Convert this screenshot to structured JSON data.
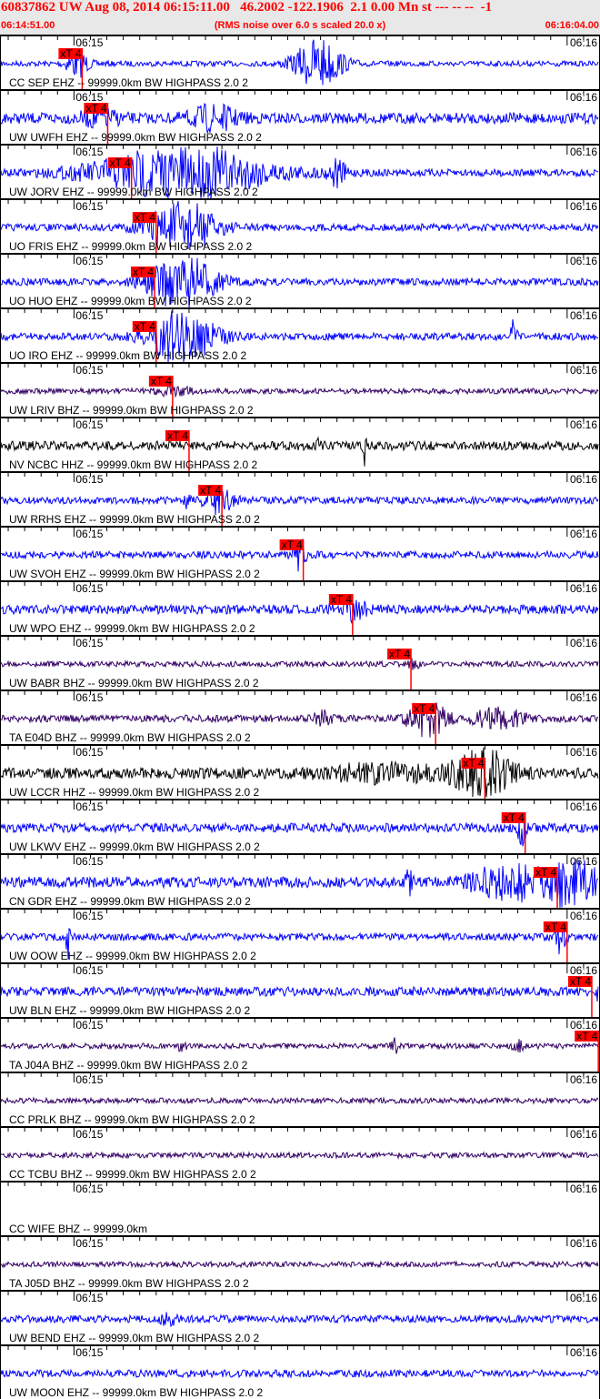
{
  "header": {
    "title": "60837862 UW Aug 08, 2014 06:15:11.00   46.2002 -122.1906  2.1 0.00 Mn st --- -- --  -1",
    "start_time": "06:14:51.00",
    "end_time": "06:16:04.00",
    "note": "(RMS noise over 6.0 s scaled 20.0 x)"
  },
  "chart_data": {
    "type": "line",
    "title": "60837862 UW Aug 08, 2014 06:15:11.00",
    "xlim": [
      "06:14:51.00",
      "06:16:04.00"
    ],
    "tick_labels": [
      "06:15",
      "06:16"
    ],
    "pick_label": "xT 4",
    "pick_color": "#ff0000",
    "colors": {
      "blue": "#0000ff",
      "purple": "#330066",
      "black": "#000000"
    },
    "traces": [
      {
        "label": "CC SEP EHZ -- 99999.0km BW  HIGHPASS  2.0  2",
        "color": "#0000ff",
        "pick": "06:15:01.0"
      },
      {
        "label": "UW UWFH EHZ -- 99999.0km BW  HIGHPASS  2.0  2",
        "color": "#0000ff",
        "pick": "06:15:04.1"
      },
      {
        "label": "UW JORV EHZ -- 99999.0km BW  HIGHPASS  2.0  2",
        "color": "#0000ff",
        "pick": "06:15:07.0"
      },
      {
        "label": "UO FRIS EHZ -- 99999.0km BW  HIGHPASS  2.0  2",
        "color": "#0000ff",
        "pick": "06:15:10.0"
      },
      {
        "label": "UO HUO EHZ -- 99999.0km BW  HIGHPASS  2.0  2",
        "color": "#0000ff",
        "pick": "06:15:09.8"
      },
      {
        "label": "UO IRO EHZ -- 99999.0km BW  HIGHPASS  2.0  2",
        "color": "#0000ff",
        "pick": "06:15:10.0"
      },
      {
        "label": "UW LRIV BHZ -- 99999.0km BW  HIGHPASS  2.0  2",
        "color": "#330066",
        "pick": "06:15:12.0"
      },
      {
        "label": "NV NCBC HHZ -- 99999.0km BW  HIGHPASS  2.0  2",
        "color": "#000000",
        "pick": "06:15:14.0"
      },
      {
        "label": "UW RRHS EHZ -- 99999.0km BW  HIGHPASS  2.0  2",
        "color": "#0000ff",
        "pick": "06:15:18.0"
      },
      {
        "label": "UW SVOH EHZ -- 99999.0km BW  HIGHPASS  2.0  2",
        "color": "#0000ff",
        "pick": "06:15:27.9"
      },
      {
        "label": "UW WPO EHZ -- 99999.0km BW  HIGHPASS  2.0  2",
        "color": "#0000ff",
        "pick": "06:15:33.9"
      },
      {
        "label": "UW BABR BHZ -- 99999.0km BW  HIGHPASS  2.0  2",
        "color": "#330066",
        "pick": "06:15:41.0"
      },
      {
        "label": "TA E04D BHZ -- 99999.0km BW  HIGHPASS  2.0  2",
        "color": "#330066",
        "pick": "06:15:44.0"
      },
      {
        "label": "UW LCCR HHZ -- 99999.0km BW  HIGHPASS  2.0  2",
        "color": "#000000",
        "pick": "06:15:50.0"
      },
      {
        "label": "UW LKWV EHZ -- 99999.0km BW  HIGHPASS  2.0  2",
        "color": "#0000ff",
        "pick": "06:15:54.9"
      },
      {
        "label": "CN GDR EHZ -- 99999.0km BW  HIGHPASS  2.0  2",
        "color": "#0000ff",
        "pick": "06:15:58.8"
      },
      {
        "label": "UW OOW EHZ -- 99999.0km BW  HIGHPASS  2.0  2",
        "color": "#0000ff",
        "pick": "06:16:00.0"
      },
      {
        "label": "UW BLN EHZ -- 99999.0km BW  HIGHPASS  2.0  2",
        "color": "#0000ff",
        "pick": "06:16:03.0"
      },
      {
        "label": "TA J04A BHZ -- 99999.0km BW  HIGHPASS  2.0  2",
        "color": "#330066",
        "pick": "06:16:03.8"
      },
      {
        "label": "CC PRLK BHZ -- 99999.0km BW  HIGHPASS  2.0  2",
        "color": "#330066",
        "pick": null
      },
      {
        "label": "CC TCBU BHZ -- 99999.0km BW  HIGHPASS  2.0  2",
        "color": "#330066",
        "pick": null
      },
      {
        "label": "CC WIFE BHZ -- 99999.0km",
        "color": null,
        "pick": null
      },
      {
        "label": "TA J05D BHZ -- 99999.0km BW  HIGHPASS  2.0  2",
        "color": "#330066",
        "pick": null
      },
      {
        "label": "UW BEND EHZ -- 99999.0km BW  HIGHPASS  2.0  2",
        "color": "#0000ff",
        "pick": null
      },
      {
        "label": "UW MOON EHZ -- 99999.0km BW  HIGHPASS  2.0  2",
        "color": "#0000ff",
        "pick": null
      }
    ]
  }
}
